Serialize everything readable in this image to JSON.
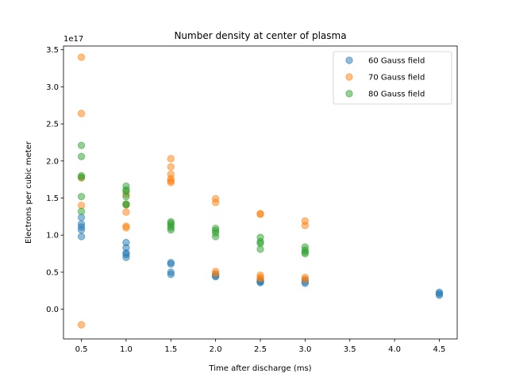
{
  "chart_data": {
    "type": "scatter",
    "title": "Number density at center of plasma",
    "xlabel": "Time after discharge (ms)",
    "ylabel": "Electrons per cubic meter",
    "y_offset_label": "1e17",
    "xlim": [
      0.3,
      4.7
    ],
    "ylim": [
      -0.4,
      3.55
    ],
    "xticks": [
      0.5,
      1.0,
      1.5,
      2.0,
      2.5,
      3.0,
      3.5,
      4.0,
      4.5
    ],
    "xtick_labels": [
      "0.5",
      "1.0",
      "1.5",
      "2.0",
      "2.5",
      "3.0",
      "3.5",
      "4.0",
      "4.5"
    ],
    "yticks": [
      0.0,
      0.5,
      1.0,
      1.5,
      2.0,
      2.5,
      3.0,
      3.5
    ],
    "ytick_labels": [
      "0.0",
      "0.5",
      "1.0",
      "1.5",
      "2.0",
      "2.5",
      "3.0",
      "3.5"
    ],
    "grid": false,
    "legend_position": "top-right",
    "series": [
      {
        "name": "60 Gauss field",
        "color": "#1f77b4",
        "points": [
          {
            "x": 0.5,
            "y": 1.24
          },
          {
            "x": 0.5,
            "y": 1.15
          },
          {
            "x": 0.5,
            "y": 1.11
          },
          {
            "x": 0.5,
            "y": 1.07
          },
          {
            "x": 0.5,
            "y": 0.98
          },
          {
            "x": 1.0,
            "y": 0.9
          },
          {
            "x": 1.0,
            "y": 0.83
          },
          {
            "x": 1.0,
            "y": 0.76
          },
          {
            "x": 1.0,
            "y": 0.74
          },
          {
            "x": 1.0,
            "y": 0.7
          },
          {
            "x": 1.5,
            "y": 0.63
          },
          {
            "x": 1.5,
            "y": 0.61
          },
          {
            "x": 1.5,
            "y": 0.5
          },
          {
            "x": 1.5,
            "y": 0.47
          },
          {
            "x": 2.0,
            "y": 0.47
          },
          {
            "x": 2.0,
            "y": 0.45
          },
          {
            "x": 2.0,
            "y": 0.44
          },
          {
            "x": 2.5,
            "y": 0.4
          },
          {
            "x": 2.5,
            "y": 0.38
          },
          {
            "x": 2.5,
            "y": 0.37
          },
          {
            "x": 2.5,
            "y": 0.36
          },
          {
            "x": 3.0,
            "y": 0.4
          },
          {
            "x": 3.0,
            "y": 0.37
          },
          {
            "x": 3.0,
            "y": 0.35
          },
          {
            "x": 4.5,
            "y": 0.23
          },
          {
            "x": 4.5,
            "y": 0.21
          },
          {
            "x": 4.5,
            "y": 0.19
          }
        ]
      },
      {
        "name": "70 Gauss field",
        "color": "#ff7f0e",
        "points": [
          {
            "x": 0.5,
            "y": 3.4
          },
          {
            "x": 0.5,
            "y": 2.64
          },
          {
            "x": 0.5,
            "y": 1.77
          },
          {
            "x": 0.5,
            "y": 1.4
          },
          {
            "x": 0.5,
            "y": -0.21
          },
          {
            "x": 1.0,
            "y": 1.55
          },
          {
            "x": 1.0,
            "y": 1.41
          },
          {
            "x": 1.0,
            "y": 1.31
          },
          {
            "x": 1.0,
            "y": 1.12
          },
          {
            "x": 1.0,
            "y": 1.1
          },
          {
            "x": 1.5,
            "y": 2.03
          },
          {
            "x": 1.5,
            "y": 1.92
          },
          {
            "x": 1.5,
            "y": 1.82
          },
          {
            "x": 1.5,
            "y": 1.76
          },
          {
            "x": 1.5,
            "y": 1.73
          },
          {
            "x": 1.5,
            "y": 1.71
          },
          {
            "x": 2.0,
            "y": 1.49
          },
          {
            "x": 2.0,
            "y": 1.44
          },
          {
            "x": 2.0,
            "y": 0.51
          },
          {
            "x": 2.0,
            "y": 0.48
          },
          {
            "x": 2.5,
            "y": 1.29
          },
          {
            "x": 2.5,
            "y": 1.28
          },
          {
            "x": 2.5,
            "y": 0.46
          },
          {
            "x": 2.5,
            "y": 0.43
          },
          {
            "x": 2.5,
            "y": 0.41
          },
          {
            "x": 3.0,
            "y": 1.19
          },
          {
            "x": 3.0,
            "y": 1.13
          },
          {
            "x": 3.0,
            "y": 0.43
          },
          {
            "x": 3.0,
            "y": 0.4
          }
        ]
      },
      {
        "name": "80 Gauss field",
        "color": "#2ca02c",
        "points": [
          {
            "x": 0.5,
            "y": 2.21
          },
          {
            "x": 0.5,
            "y": 2.06
          },
          {
            "x": 0.5,
            "y": 1.8
          },
          {
            "x": 0.5,
            "y": 1.78
          },
          {
            "x": 0.5,
            "y": 1.52
          },
          {
            "x": 0.5,
            "y": 1.32
          },
          {
            "x": 1.0,
            "y": 1.66
          },
          {
            "x": 1.0,
            "y": 1.61
          },
          {
            "x": 1.0,
            "y": 1.59
          },
          {
            "x": 1.0,
            "y": 1.52
          },
          {
            "x": 1.0,
            "y": 1.42
          },
          {
            "x": 1.0,
            "y": 1.41
          },
          {
            "x": 1.5,
            "y": 1.18
          },
          {
            "x": 1.5,
            "y": 1.16
          },
          {
            "x": 1.5,
            "y": 1.13
          },
          {
            "x": 1.5,
            "y": 1.1
          },
          {
            "x": 1.5,
            "y": 1.07
          },
          {
            "x": 2.0,
            "y": 1.09
          },
          {
            "x": 2.0,
            "y": 1.06
          },
          {
            "x": 2.0,
            "y": 1.03
          },
          {
            "x": 2.0,
            "y": 0.98
          },
          {
            "x": 2.5,
            "y": 0.97
          },
          {
            "x": 2.5,
            "y": 0.91
          },
          {
            "x": 2.5,
            "y": 0.89
          },
          {
            "x": 2.5,
            "y": 0.81
          },
          {
            "x": 3.0,
            "y": 0.84
          },
          {
            "x": 3.0,
            "y": 0.8
          },
          {
            "x": 3.0,
            "y": 0.77
          },
          {
            "x": 3.0,
            "y": 0.75
          }
        ]
      }
    ]
  }
}
